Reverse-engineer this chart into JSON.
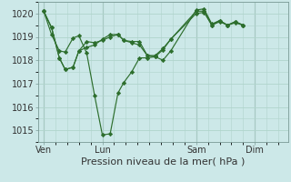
{
  "background_color": "#cce8e8",
  "grid_color": "#b0d4cc",
  "line_color": "#2d6e2d",
  "marker_color": "#2d6e2d",
  "xlabel": "Pression niveau de la mer( hPa )",
  "xlabel_fontsize": 8,
  "ylim": [
    1014.5,
    1020.5
  ],
  "yticks": [
    1015,
    1016,
    1017,
    1018,
    1019,
    1020
  ],
  "xtick_labels": [
    "Ven",
    "Lun",
    "Sam",
    "Dim"
  ],
  "xtick_positions": [
    0,
    30,
    78,
    108
  ],
  "vline_positions": [
    0,
    30,
    78,
    108
  ],
  "xlim": [
    -3,
    125
  ],
  "series": [
    [
      1020.1,
      1019.4,
      1018.1,
      1017.6,
      1017.7,
      1018.4,
      1018.8,
      1018.75,
      1018.85,
      1019.0,
      1019.1,
      1018.85,
      1018.8,
      1018.8,
      1018.2,
      1018.2,
      1018.5,
      1018.9,
      1020.1,
      1020.1,
      1019.5,
      1019.7,
      1019.5,
      1019.65,
      1019.5
    ],
    [
      1020.1,
      1019.4,
      1018.1,
      1017.6,
      1017.7,
      1018.4,
      1018.55,
      1018.65,
      1018.9,
      1019.1,
      1019.1,
      1018.85,
      1018.75,
      1018.65,
      1018.2,
      1018.15,
      1018.45,
      1018.9,
      1020.0,
      1020.05,
      1019.5,
      1019.65,
      1019.5,
      1019.6,
      1019.5
    ],
    [
      1020.1,
      1019.1,
      1018.4,
      1018.35,
      1018.95,
      1019.05,
      1018.3,
      1016.5,
      1014.8,
      1014.85,
      1016.6,
      1017.05,
      1017.5,
      1018.1,
      1018.1,
      1018.15,
      1018.0,
      1018.4,
      1020.15,
      1020.2,
      1019.55,
      1019.7,
      1019.5,
      1019.65,
      1019.5
    ]
  ],
  "x_hours": [
    0,
    4,
    8,
    11,
    15,
    18,
    22,
    26,
    30,
    34,
    38,
    41,
    45,
    49,
    53,
    57,
    61,
    65,
    78,
    82,
    86,
    90,
    94,
    98,
    102
  ]
}
